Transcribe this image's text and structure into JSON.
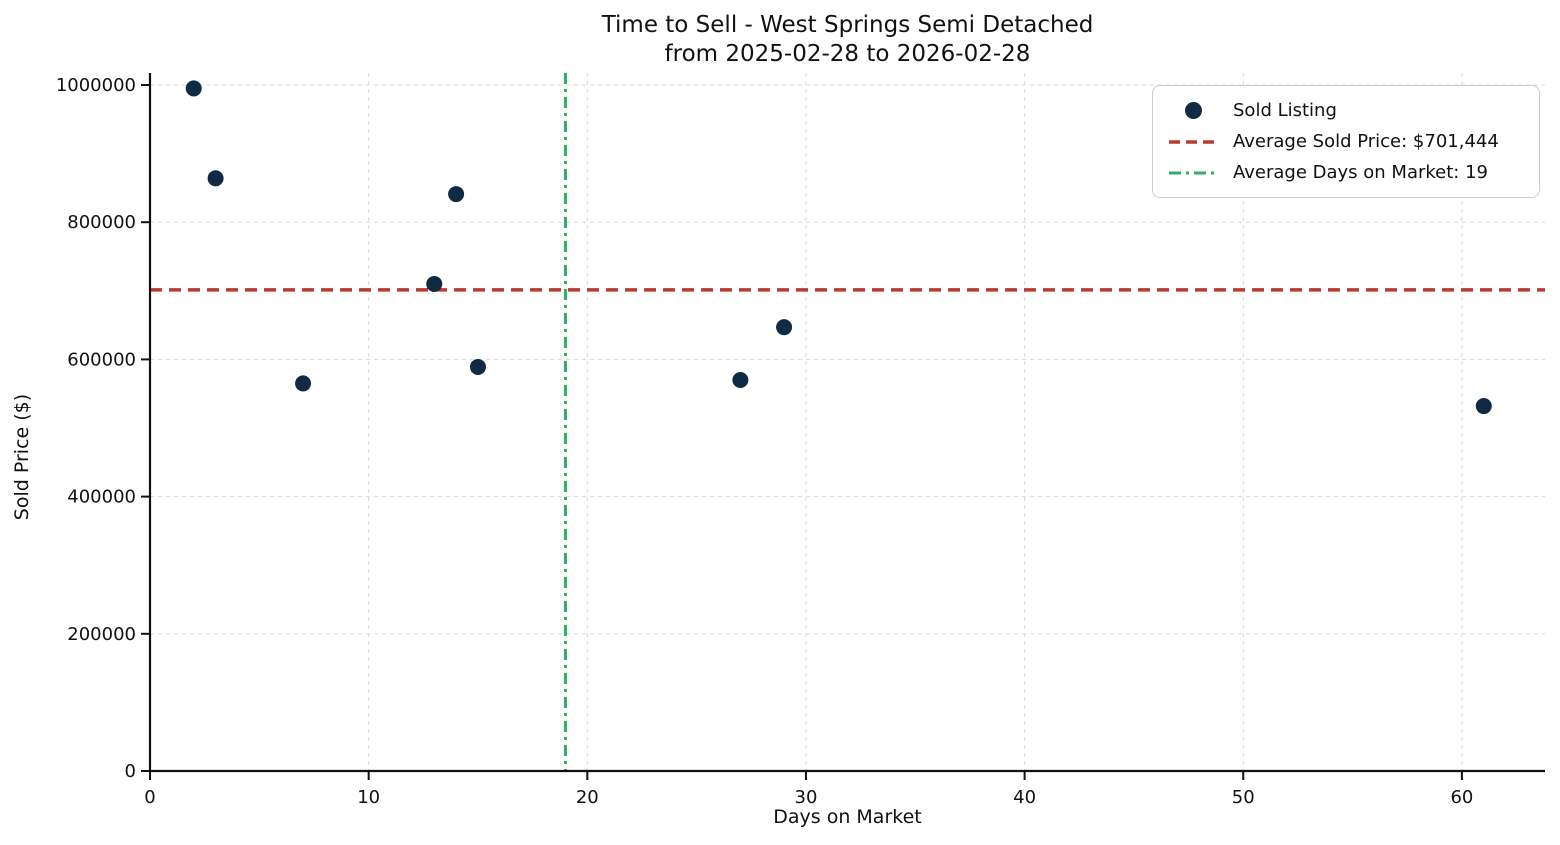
{
  "chart_data": {
    "type": "scatter",
    "title": "Time to Sell - West Springs Semi Detached",
    "subtitle": "from 2025-02-28 to 2026-02-28",
    "xlabel": "Days on Market",
    "ylabel": "Sold Price ($)",
    "series": [
      {
        "name": "Sold Listing",
        "x": [
          2,
          3,
          7,
          13,
          14,
          15,
          27,
          29,
          61
        ],
        "y": [
          995000,
          864000,
          565000,
          710000,
          841000,
          589000,
          570000,
          647000,
          532000
        ]
      }
    ],
    "avg_sold_price": 701444,
    "avg_days_on_market": 19,
    "xlim": [
      0,
      63.8
    ],
    "ylim": [
      0,
      1017500
    ],
    "xticks": [
      0,
      10,
      20,
      30,
      40,
      50,
      60
    ],
    "yticks": [
      0,
      200000,
      400000,
      600000,
      800000,
      1000000
    ],
    "grid": "dashed",
    "legend_position": "upper right",
    "legend": [
      {
        "marker": "dot",
        "label": "Sold Listing"
      },
      {
        "marker": "dashed-line",
        "label": "Average Sold Price: $701,444"
      },
      {
        "marker": "dashdot-line",
        "label": "Average Days on Market: 19"
      }
    ],
    "colors": {
      "point": "#102a43",
      "avg_price_line": "#b83b32",
      "avg_days_line": "#2eaf64",
      "grid": "#d9d9d9",
      "text": "#111111",
      "legend_border": "#cccccc"
    }
  }
}
